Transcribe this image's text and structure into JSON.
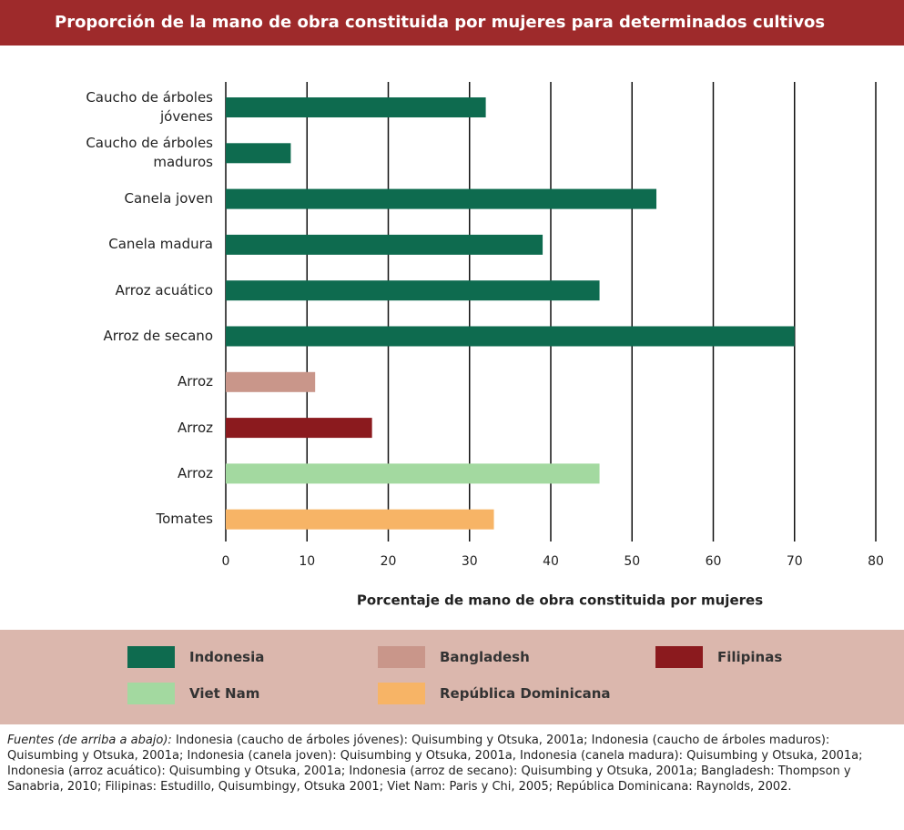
{
  "chart_data": {
    "type": "bar",
    "orientation": "horizontal",
    "title": "Proporción de la mano de obra constituida por mujeres para determinados cultivos",
    "x_label": "Porcentaje de mano de obra constituida por mujeres",
    "categories": [
      "Caucho de árboles jóvenes",
      "Caucho de árboles maduros",
      "Canela joven",
      "Canela madura",
      "Arroz acuático",
      "Arroz de secano",
      "Arroz",
      "Arroz",
      "Arroz",
      "Tomates"
    ],
    "series": [
      {
        "name": "Indonesia",
        "color": "#0e6b4f",
        "values": [
          32,
          8,
          53,
          39,
          46,
          70,
          null,
          null,
          null,
          null
        ]
      },
      {
        "name": "Bangladesh",
        "color": "#c9968a",
        "values": [
          null,
          null,
          null,
          null,
          null,
          null,
          11,
          null,
          null,
          null
        ]
      },
      {
        "name": "Filipinas",
        "color": "#8b1a1e",
        "values": [
          null,
          null,
          null,
          null,
          null,
          null,
          null,
          18,
          null,
          null
        ]
      },
      {
        "name": "Viet Nam",
        "color": "#a3d9a0",
        "values": [
          null,
          null,
          null,
          null,
          null,
          null,
          null,
          null,
          46,
          null
        ]
      },
      {
        "name": "República Dominicana",
        "color": "#f7b466",
        "values": [
          null,
          null,
          null,
          null,
          null,
          null,
          null,
          null,
          null,
          33
        ]
      }
    ],
    "xlim": [
      0,
      80
    ],
    "xticks": [
      0,
      10,
      20,
      30,
      40,
      50,
      60,
      70,
      80
    ],
    "grid": true,
    "source_label": "Fuentes (de arriba a abajo):",
    "source_text": "Indonesia (caucho de árboles jóvenes): Quisumbing y Otsuka, 2001a; Indonesia (caucho de árboles maduros): Quisumbing y Otsuka, 2001a; Indonesia (canela joven): Quisumbing y Otsuka, 2001a, Indonesia (canela madura): Quisumbing y Otsuka, 2001a; Indonesia (arroz acuático): Quisumbing y Otsuka, 2001a; Indonesia (arroz de secano): Quisumbing y Otsuka, 2001a; Bangladesh: Thompson y Sanabria, 2010; Filipinas: Estudillo, Quisumbingy, Otsuka 2001; Viet Nam: Paris y Chi, 2005; República Dominicana: Raynolds, 2002."
  }
}
